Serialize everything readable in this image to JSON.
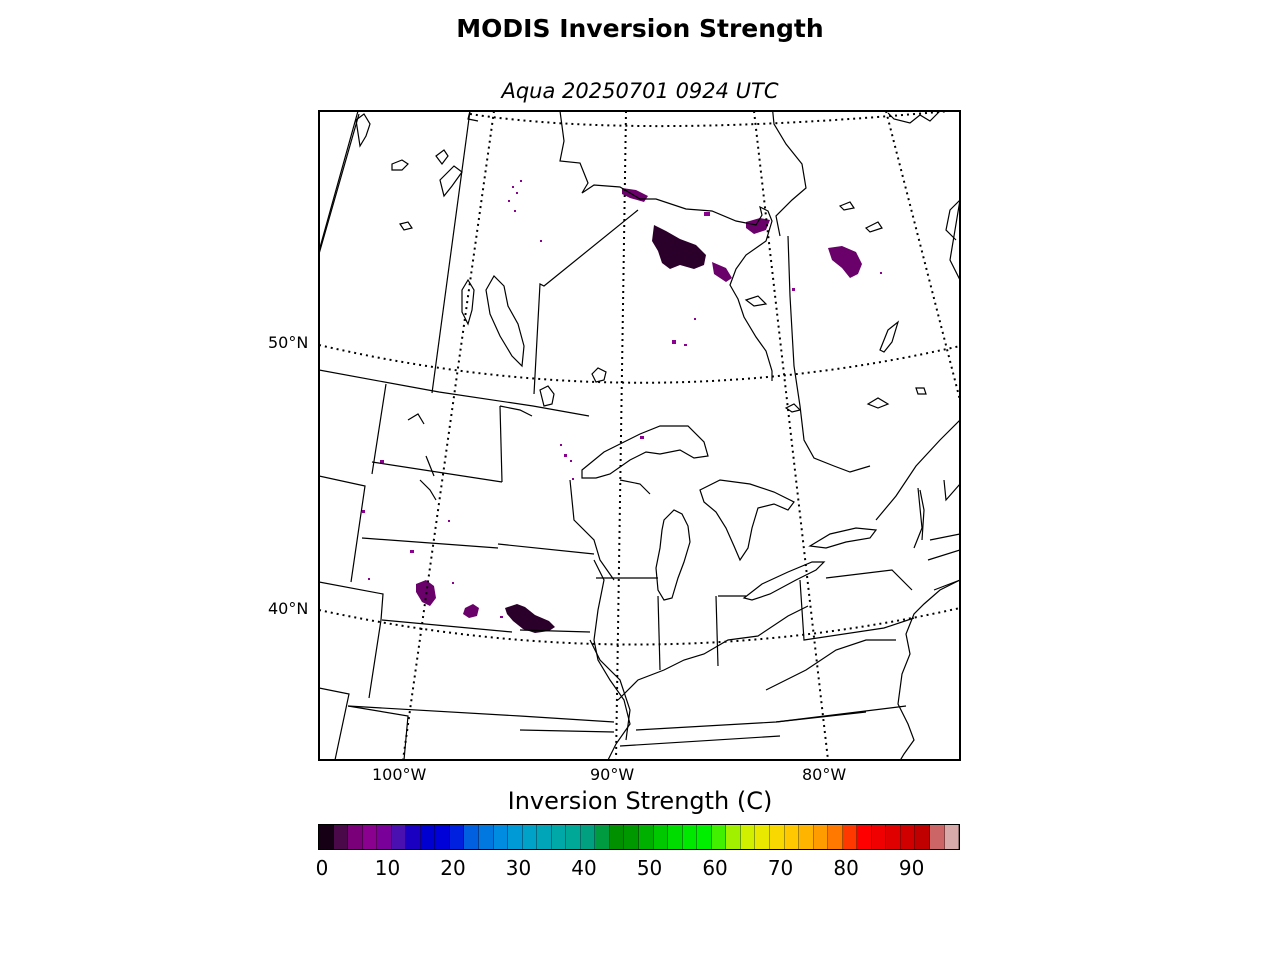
{
  "title": "MODIS Inversion Strength",
  "subtitle": "Aqua 20250701 0924 UTC",
  "map": {
    "lat_labels": [
      "50°N",
      "40°N"
    ],
    "lon_labels": [
      "100°W",
      "90°W",
      "80°W"
    ]
  },
  "colorbar": {
    "title": "Inversion Strength (C)",
    "min": 0,
    "max": 98,
    "ticks": [
      "0",
      "10",
      "20",
      "30",
      "40",
      "50",
      "60",
      "70",
      "80",
      "90"
    ],
    "colors": [
      "#150015",
      "#4a0a4a",
      "#7a007a",
      "#8a008f",
      "#7a009a",
      "#4a10b0",
      "#1a00c0",
      "#0000d0",
      "#0000d8",
      "#0020e0",
      "#0060e0",
      "#0078e0",
      "#008ce0",
      "#009ad6",
      "#00a2c8",
      "#00a6b8",
      "#00a8a8",
      "#00a898",
      "#00a080",
      "#009a40",
      "#009000",
      "#009800",
      "#00b000",
      "#00c800",
      "#00dc00",
      "#00e800",
      "#00ef00",
      "#40f000",
      "#a0f000",
      "#d0f000",
      "#e8e800",
      "#f8d800",
      "#ffc800",
      "#ffb400",
      "#ff9c00",
      "#ff7800",
      "#ff3800",
      "#ff0000",
      "#f00000",
      "#e00000",
      "#d00000",
      "#c00000",
      "#cc6666",
      "#d8aaaa"
    ]
  },
  "colors": {
    "data_dark": "#2a002a",
    "data_purple": "#6a006a",
    "data_mid": "#8a008f"
  }
}
